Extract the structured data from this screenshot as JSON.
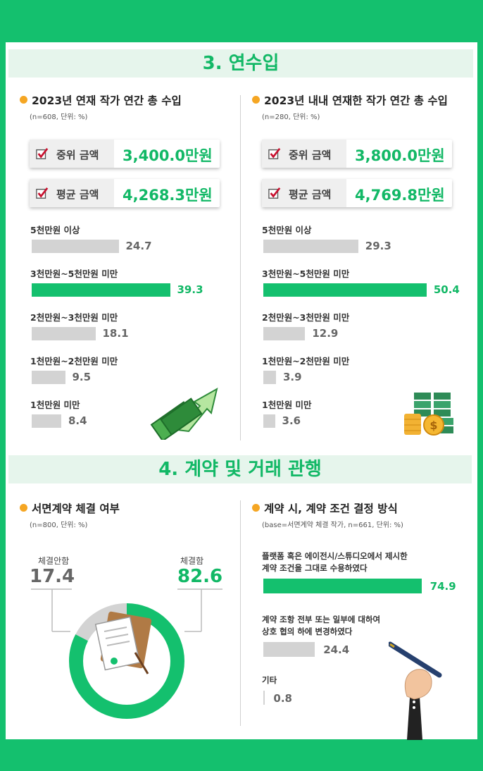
{
  "section3": {
    "title": "3. 연수입"
  },
  "section4": {
    "title": "4. 계약 및 거래 관행"
  },
  "income_left": {
    "heading": "2023년 연재 작가 연간 총 수입",
    "note": "(n=608, 단위: %)",
    "median_label": "중위 금액",
    "median_value": "3,400.0만원",
    "mean_label": "평균 금액",
    "mean_value": "4,268.3만원"
  },
  "income_right": {
    "heading": "2023년 내내 연재한 작가 연간 총 수입",
    "note": "(n=280, 단위: %)",
    "median_label": "중위 금액",
    "median_value": "3,800.0만원",
    "mean_label": "평균 금액",
    "mean_value": "4,769.8만원"
  },
  "contract_left": {
    "heading": "서면계약 체결 여부",
    "note": "(n=800, 단위: %)"
  },
  "contract_right": {
    "heading": "계약 시, 계약 조건 결정 방식",
    "note": "(base=서면계약 체결 작가, n=661, 단위: %)"
  },
  "chart_data": [
    {
      "type": "bar",
      "orientation": "horizontal",
      "categories": [
        "5천만원 이상",
        "3천만원~5천만원 미만",
        "2천만원~3천만원 미만",
        "1천만원~2천만원 미만",
        "1천만원 미만"
      ],
      "values": [
        24.7,
        39.3,
        18.1,
        9.5,
        8.4
      ],
      "labels": [
        "24.7",
        "39.3",
        "18.1",
        "9.5",
        "8.4"
      ],
      "highlight_index": 1
    },
    {
      "type": "bar",
      "orientation": "horizontal",
      "categories": [
        "5천만원 이상",
        "3천만원~5천만원 미만",
        "2천만원~3천만원 미만",
        "1천만원~2천만원 미만",
        "1천만원 미만"
      ],
      "values": [
        29.3,
        50.4,
        12.9,
        3.9,
        3.6
      ],
      "labels": [
        "29.3",
        "50.4",
        "12.9",
        "3.9",
        "3.6"
      ],
      "highlight_index": 1
    },
    {
      "type": "pie",
      "donut": true,
      "categories": [
        "체결안함",
        "체결함"
      ],
      "values": [
        17.4,
        82.6
      ],
      "labels": [
        "17.4",
        "82.6"
      ],
      "colors": [
        "#d3d3d3",
        "#14c06e"
      ]
    },
    {
      "type": "bar",
      "orientation": "horizontal",
      "categories": [
        "플랫폼 혹은 에이전시/스튜디오에서 제시한 계약 조건을 그대로 수용하였다",
        "계약 조항 전부 또는 일부에 대하여 상호 협의 하에 변경하였다",
        "기타"
      ],
      "category_lines": [
        [
          "플랫폼 혹은 에이전시/스튜디오에서 제시한",
          "계약 조건을 그대로 수용하였다"
        ],
        [
          "계약 조항 전부 또는 일부에 대하여",
          "상호 협의 하에 변경하였다"
        ],
        [
          "기타"
        ]
      ],
      "values": [
        74.9,
        24.4,
        0.8
      ],
      "labels": [
        "74.9",
        "24.4",
        "0.8"
      ],
      "highlight_index": 0
    }
  ],
  "colors": {
    "accent": "#14c06e",
    "bar_gray": "#d3d3d3",
    "dot": "#f5a623",
    "check": "#c8102e"
  },
  "icons": [
    "check-icon",
    "money-arrow-icon",
    "money-stack-icon",
    "contract-documents-icon",
    "pen-hand-icon"
  ]
}
